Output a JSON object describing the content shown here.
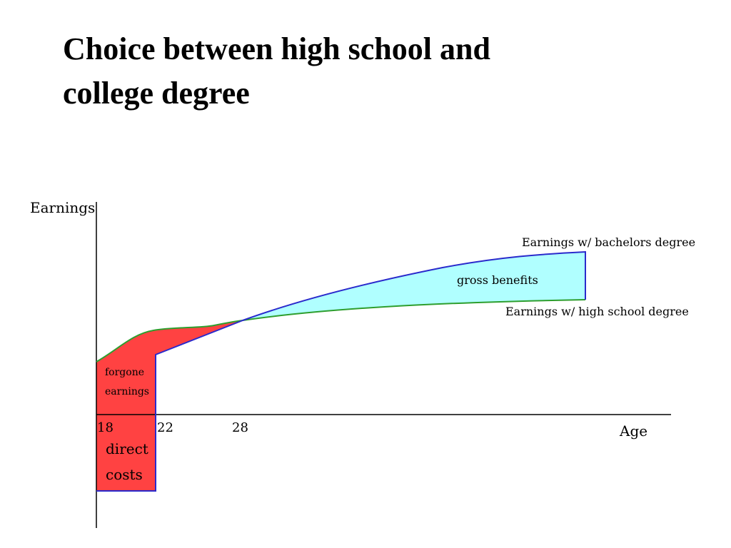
{
  "title": "Choice between high school and college degree",
  "diagram": {
    "y_axis_label": "Earnings",
    "x_axis_label": "Age",
    "x_ticks": [
      "18",
      "22",
      "28"
    ],
    "curve_labels": {
      "bachelors": "Earnings w/ bachelors degree",
      "high_school": "Earnings w/ high school degree"
    },
    "area_labels": {
      "gross_benefits": "gross benefits",
      "forgone_earnings": [
        "forgone",
        "earnings"
      ],
      "direct_costs": [
        "direct",
        "costs"
      ]
    }
  }
}
